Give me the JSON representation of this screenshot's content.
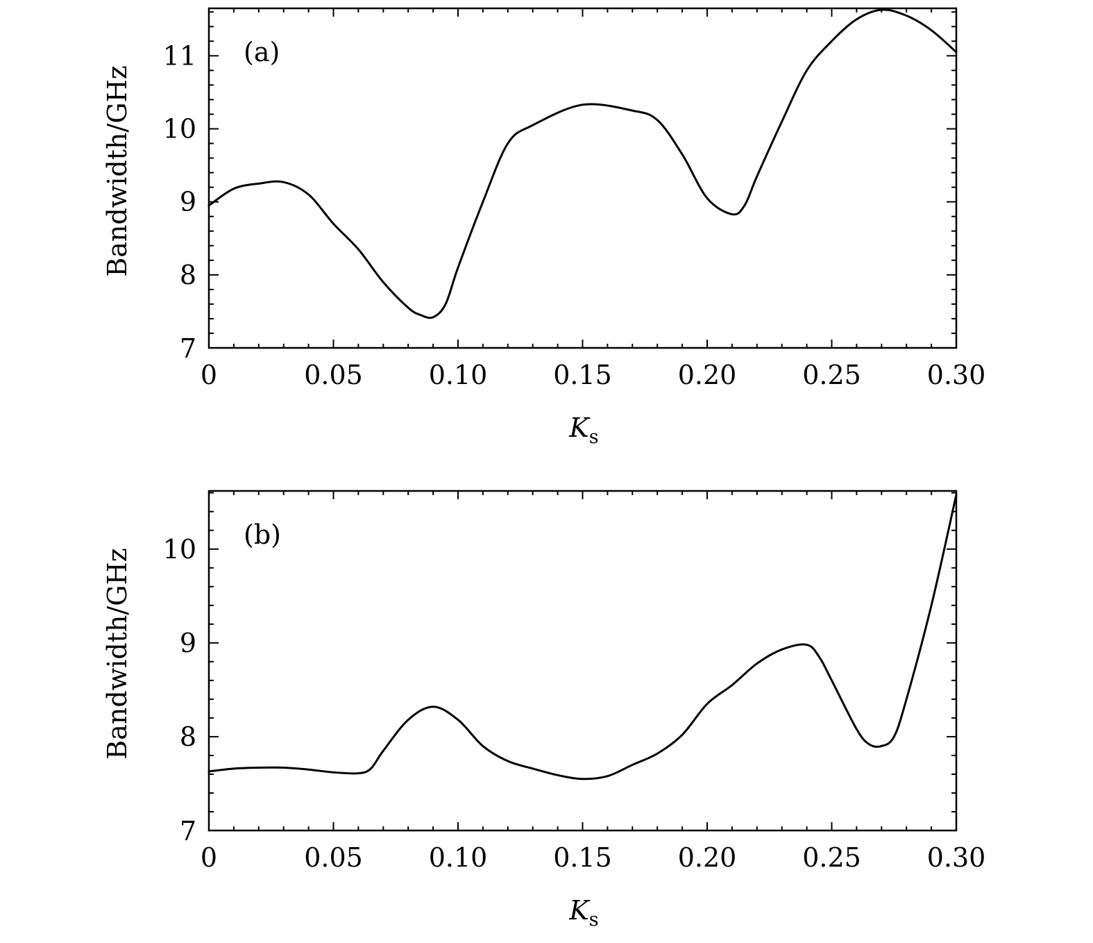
{
  "chart_data": [
    {
      "type": "line",
      "panel_label": "(a)",
      "xlabel": "K",
      "xlabel_sub": "s",
      "ylabel": "Bandwidth/GHz",
      "xlim": [
        0,
        0.3
      ],
      "ylim": [
        7,
        11.65
      ],
      "x_ticks": [
        0,
        0.05,
        0.1,
        0.15,
        0.2,
        0.25,
        0.3
      ],
      "x_tick_labels": [
        "0",
        "0.05",
        "0.10",
        "0.15",
        "0.20",
        "0.25",
        "0.30"
      ],
      "y_ticks": [
        7,
        8,
        9,
        10,
        11
      ],
      "y_tick_labels": [
        "7",
        "8",
        "9",
        "10",
        "11"
      ],
      "grid": false,
      "series": [
        {
          "x": [
            0,
            0.01,
            0.02,
            0.03,
            0.04,
            0.05,
            0.06,
            0.07,
            0.08,
            0.085,
            0.09,
            0.095,
            0.1,
            0.11,
            0.12,
            0.13,
            0.15,
            0.17,
            0.18,
            0.19,
            0.2,
            0.21,
            0.215,
            0.22,
            0.23,
            0.24,
            0.25,
            0.26,
            0.27,
            0.28,
            0.29,
            0.3
          ],
          "y": [
            8.95,
            9.18,
            9.25,
            9.27,
            9.1,
            8.7,
            8.35,
            7.9,
            7.55,
            7.45,
            7.42,
            7.6,
            8.1,
            9.0,
            9.8,
            10.05,
            10.33,
            10.25,
            10.12,
            9.65,
            9.05,
            8.83,
            8.95,
            9.35,
            10.1,
            10.8,
            11.2,
            11.5,
            11.63,
            11.55,
            11.35,
            11.05
          ]
        }
      ]
    },
    {
      "type": "line",
      "panel_label": "(b)",
      "xlabel": "K",
      "xlabel_sub": "s",
      "ylabel": "Bandwidth/GHz",
      "xlim": [
        0,
        0.3
      ],
      "ylim": [
        7,
        10.62
      ],
      "x_ticks": [
        0,
        0.05,
        0.1,
        0.15,
        0.2,
        0.25,
        0.3
      ],
      "x_tick_labels": [
        "0",
        "0.05",
        "0.10",
        "0.15",
        "0.20",
        "0.25",
        "0.30"
      ],
      "y_ticks": [
        7,
        8,
        9,
        10
      ],
      "y_tick_labels": [
        "7",
        "8",
        "9",
        "10"
      ],
      "grid": false,
      "series": [
        {
          "x": [
            0,
            0.01,
            0.02,
            0.03,
            0.04,
            0.05,
            0.06,
            0.065,
            0.07,
            0.08,
            0.09,
            0.1,
            0.11,
            0.12,
            0.13,
            0.14,
            0.15,
            0.16,
            0.17,
            0.18,
            0.19,
            0.2,
            0.21,
            0.22,
            0.23,
            0.24,
            0.245,
            0.25,
            0.26,
            0.265,
            0.27,
            0.275,
            0.28,
            0.29,
            0.3
          ],
          "y": [
            7.63,
            7.66,
            7.67,
            7.67,
            7.65,
            7.62,
            7.61,
            7.66,
            7.85,
            8.18,
            8.32,
            8.18,
            7.9,
            7.74,
            7.66,
            7.59,
            7.55,
            7.58,
            7.7,
            7.82,
            8.02,
            8.35,
            8.55,
            8.78,
            8.93,
            8.98,
            8.85,
            8.6,
            8.08,
            7.92,
            7.9,
            8.0,
            8.4,
            9.4,
            10.58
          ]
        }
      ]
    }
  ]
}
